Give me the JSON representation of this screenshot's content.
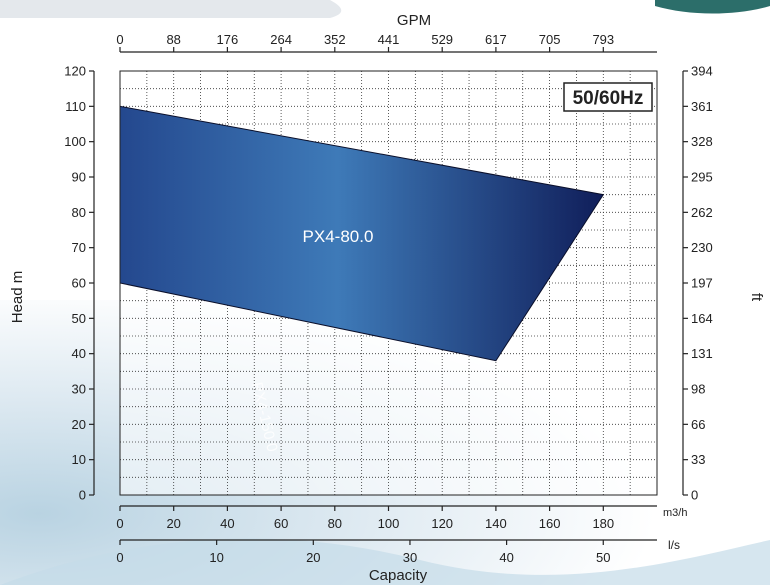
{
  "chart_data": {
    "type": "area",
    "title": "",
    "badge": "50/60Hz",
    "curve_label": "PX4-80.0",
    "faint_label": "PX4-150.0",
    "axes": {
      "bottom_primary": {
        "label": "Capacity",
        "unit": "m3/h",
        "range": [
          0,
          200
        ],
        "ticks": [
          0,
          20,
          40,
          60,
          80,
          100,
          120,
          140,
          160,
          180
        ]
      },
      "bottom_secondary": {
        "unit": "l/s",
        "range": [
          0,
          55.56
        ],
        "ticks": [
          0,
          10,
          20,
          30,
          40,
          50
        ]
      },
      "top": {
        "label": "GPM",
        "range": [
          0,
          880.6
        ],
        "tick_labels": [
          "0",
          "88",
          "176",
          "264",
          "352",
          "441",
          "529",
          "617",
          "705",
          "793"
        ]
      },
      "left": {
        "label": "Head m",
        "range": [
          0,
          120
        ],
        "ticks": [
          0,
          10,
          20,
          30,
          40,
          50,
          60,
          70,
          80,
          90,
          100,
          110,
          120
        ]
      },
      "right": {
        "label": "ft",
        "range": [
          0,
          394
        ],
        "tick_labels": [
          "0",
          "33",
          "66",
          "98",
          "131",
          "164",
          "197",
          "230",
          "262",
          "295",
          "328",
          "361",
          "394"
        ]
      }
    },
    "grid": true,
    "series": [
      {
        "name": "PX4-80.0",
        "upper": [
          {
            "x": 0,
            "y": 110
          },
          {
            "x": 180,
            "y": 85
          }
        ],
        "lower": [
          {
            "x": 0,
            "y": 60
          },
          {
            "x": 140,
            "y": 38
          }
        ],
        "colors": [
          "#24488e",
          "#3e7ab8",
          "#101e5a"
        ]
      }
    ]
  }
}
